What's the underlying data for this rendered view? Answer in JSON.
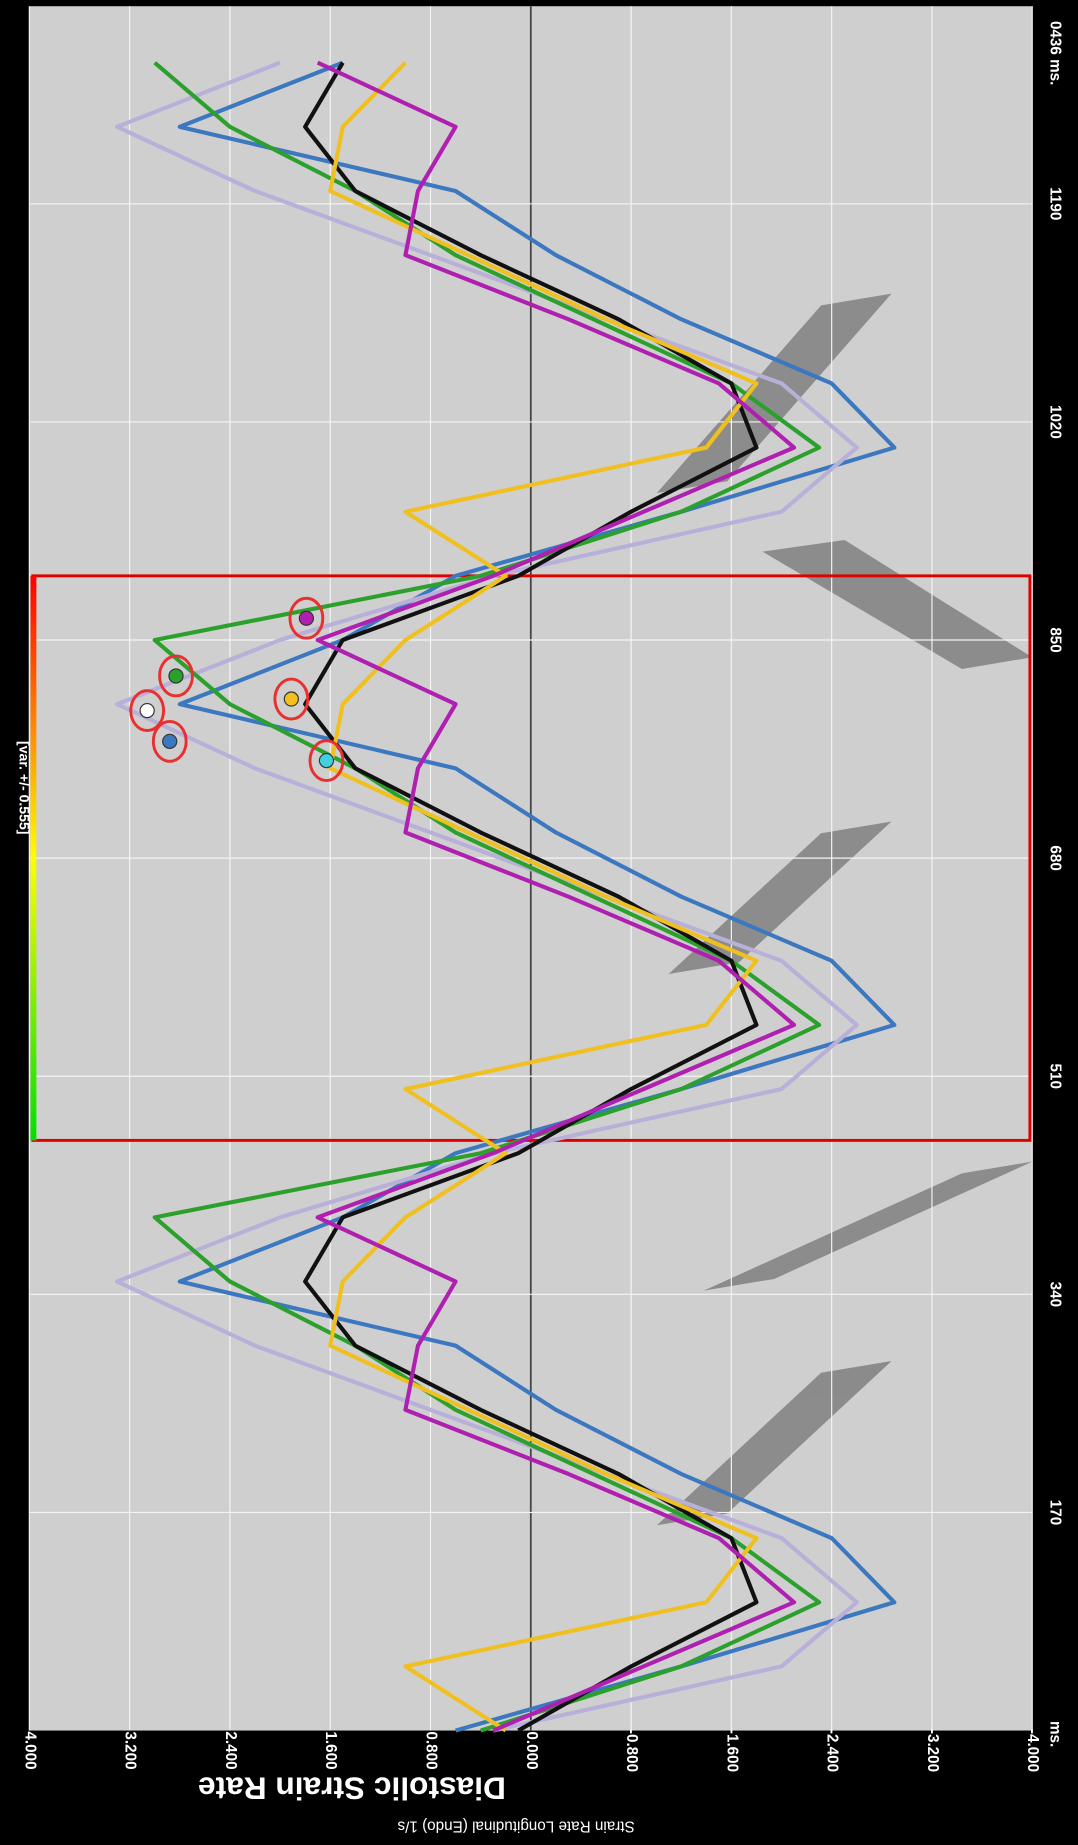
{
  "chart_data": {
    "type": "line",
    "title": "Diastolic Strain Rate",
    "y_label": "Strain Rate Longitudinal (Endo)  1/s",
    "x_label": "ms.",
    "time_label": "0436 ms.",
    "colorbar_label": "[var. +/- 0.555]",
    "x": [
      0,
      50,
      100,
      150,
      200,
      250,
      300,
      350,
      400,
      450,
      500,
      550,
      600,
      650,
      700,
      750,
      800,
      850,
      900,
      950,
      1000,
      1050,
      1100,
      1150,
      1200,
      1250,
      1300
    ],
    "xlim": [
      0,
      1344
    ],
    "xticks": [
      170,
      340,
      510,
      680,
      850,
      1020,
      1190
    ],
    "ylim": [
      -4,
      4
    ],
    "yticks": [
      {
        "value": 4,
        "label": "4.000"
      },
      {
        "value": 3.2,
        "label": "3.200"
      },
      {
        "value": 2.4,
        "label": "2.400"
      },
      {
        "value": 1.6,
        "label": "1.600"
      },
      {
        "value": 0.8,
        "label": "0.800"
      },
      {
        "value": 0,
        "label": "0.000"
      },
      {
        "value": -0.8,
        "label": "-0.800"
      },
      {
        "value": -1.6,
        "label": "-1.600"
      },
      {
        "value": -2.4,
        "label": "-2.400"
      },
      {
        "value": -3.2,
        "label": "-3.200"
      },
      {
        "value": -4,
        "label": "-4.000"
      }
    ],
    "grid": true,
    "series": [
      {
        "color": "#3c78c0",
        "values": [
          0.6,
          -1.2,
          -2.9,
          -2.4,
          -1.2,
          -0.2,
          0.6,
          2.8,
          1.5,
          0.6,
          -1.2,
          -2.9,
          -2.4,
          -1.2,
          -0.2,
          0.6,
          2.8,
          1.5,
          0.6,
          -1.2,
          -2.9,
          -2.4,
          -1.2,
          -0.2,
          0.6,
          2.8,
          1.5
        ]
      },
      {
        "color": "#b8b0d8",
        "values": [
          0.3,
          -2.0,
          -2.6,
          -2.0,
          -0.6,
          0.8,
          2.2,
          3.3,
          2.0,
          0.3,
          -2.0,
          -2.6,
          -2.0,
          -0.6,
          0.8,
          2.2,
          3.3,
          2.0,
          0.3,
          -2.0,
          -2.6,
          -2.0,
          -0.6,
          0.8,
          2.2,
          3.3,
          2.0
        ]
      },
      {
        "color": "#2ca02c",
        "values": [
          0.4,
          -1.2,
          -2.3,
          -1.6,
          -0.5,
          0.6,
          1.4,
          2.4,
          3.0,
          0.4,
          -1.2,
          -2.3,
          -1.6,
          -0.5,
          0.6,
          1.4,
          2.4,
          3.0,
          0.4,
          -1.2,
          -2.3,
          -1.6,
          -0.5,
          0.6,
          1.4,
          2.4,
          3.0
        ]
      },
      {
        "color": "#111111",
        "values": [
          0.1,
          -0.8,
          -1.8,
          -1.6,
          -0.7,
          0.4,
          1.4,
          1.8,
          1.5,
          0.1,
          -0.8,
          -1.8,
          -1.6,
          -0.7,
          0.4,
          1.4,
          1.8,
          1.5,
          0.1,
          -0.8,
          -1.8,
          -1.6,
          -0.7,
          0.4,
          1.4,
          1.8,
          1.5
        ]
      },
      {
        "color": "#f0c020",
        "values": [
          0.2,
          1.0,
          -1.4,
          -1.8,
          -0.6,
          0.5,
          1.6,
          1.5,
          1.0,
          0.2,
          1.0,
          -1.4,
          -1.8,
          -0.6,
          0.5,
          1.6,
          1.5,
          1.0,
          0.2,
          1.0,
          -1.4,
          -1.8,
          -0.6,
          0.5,
          1.6,
          1.5,
          1.0
        ]
      },
      {
        "color": "#b020b0",
        "values": [
          0.3,
          -0.9,
          -2.1,
          -1.5,
          -0.3,
          1.0,
          0.9,
          0.6,
          1.7,
          0.3,
          -0.9,
          -2.1,
          -1.5,
          -0.3,
          1.0,
          0.9,
          0.6,
          1.7,
          0.3,
          -0.9,
          -2.1,
          -1.5,
          -0.3,
          1.0,
          0.9,
          0.6,
          1.7
        ]
      }
    ],
    "markers": [
      {
        "color": "#3c78c0",
        "x": 771,
        "y": 2.88
      },
      {
        "color": "#ffffff",
        "x": 795,
        "y": 3.06
      },
      {
        "color": "#2ca02c",
        "x": 822,
        "y": 2.83
      },
      {
        "color": "#f0c020",
        "x": 804,
        "y": 1.91
      },
      {
        "color": "#40d0e0",
        "x": 756,
        "y": 1.63
      },
      {
        "color": "#b020b0",
        "x": 867,
        "y": 1.79
      }
    ],
    "box_xlim": [
      460,
      900
    ]
  }
}
